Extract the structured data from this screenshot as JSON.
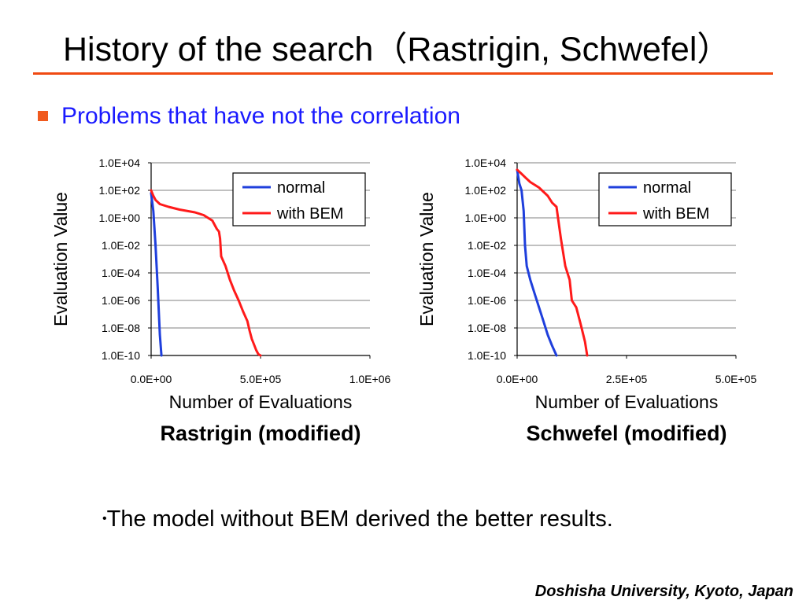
{
  "slide": {
    "title": "History of the search（Rastrigin, Schwefel）",
    "bullet": "Problems that have not the correlation",
    "conclusion_bullet": "•",
    "conclusion": "The model without BEM derived the better results.",
    "footer": "Doshisha University, Kyoto, Japan"
  },
  "colors": {
    "accent_rule": "#f04a12",
    "bullet_square": "#f05a1e",
    "bullet_text": "#1a1aff",
    "normal": "#1f3fdc",
    "with_bem": "#ff1a1a",
    "gridline": "#9a9a9a",
    "text": "#000000"
  },
  "chart_data": [
    {
      "type": "line",
      "caption": "Rastrigin (modified)",
      "xlabel": "Number of Evaluations",
      "ylabel": "Evaluation Value",
      "y_scale": "log",
      "xlim": [
        0,
        1000000
      ],
      "ylim_exp": [
        -10,
        4
      ],
      "x_ticks": [
        0,
        500000,
        1000000
      ],
      "x_tick_labels": [
        "0.0E+00",
        "5.0E+05",
        "1.0E+06"
      ],
      "y_tick_exps": [
        4,
        2,
        0,
        -2,
        -4,
        -6,
        -8,
        -10
      ],
      "y_tick_labels": [
        "1.0E+04",
        "1.0E+02",
        "1.0E+00",
        "1.0E-02",
        "1.0E-04",
        "1.0E-06",
        "1.0E-08",
        "1.0E-10"
      ],
      "grid": true,
      "legend_position": "top-right",
      "series": [
        {
          "name": "normal",
          "color": "#1f3fdc",
          "x": [
            0,
            10000,
            20000,
            30000,
            40000,
            47000
          ],
          "log10_y": [
            1.8,
            0.5,
            -2.0,
            -5.0,
            -8.5,
            -10
          ]
        },
        {
          "name": "with BEM",
          "color": "#ff1a1a",
          "x": [
            0,
            10000,
            20000,
            40000,
            80000,
            130000,
            200000,
            240000,
            280000,
            300000,
            310000,
            315000,
            320000,
            340000,
            360000,
            380000,
            400000,
            420000,
            440000,
            450000,
            460000,
            470000,
            480000,
            490000,
            500000
          ],
          "log10_y": [
            2.0,
            1.6,
            1.3,
            1.0,
            0.8,
            0.6,
            0.4,
            0.2,
            -0.2,
            -0.8,
            -1.0,
            -1.5,
            -2.8,
            -3.5,
            -4.5,
            -5.3,
            -6.0,
            -6.8,
            -7.5,
            -8.2,
            -8.8,
            -9.2,
            -9.6,
            -9.9,
            -10
          ]
        }
      ]
    },
    {
      "type": "line",
      "caption": "Schwefel (modified)",
      "xlabel": "Number of Evaluations",
      "ylabel": "Evaluation Value",
      "y_scale": "log",
      "xlim": [
        0,
        500000
      ],
      "ylim_exp": [
        -10,
        4
      ],
      "x_ticks": [
        0,
        250000,
        500000
      ],
      "x_tick_labels": [
        "0.0E+00",
        "2.5E+05",
        "5.0E+05"
      ],
      "y_tick_exps": [
        4,
        2,
        0,
        -2,
        -4,
        -6,
        -8,
        -10
      ],
      "y_tick_labels": [
        "1.0E+04",
        "1.0E+02",
        "1.0E+00",
        "1.0E-02",
        "1.0E-04",
        "1.0E-06",
        "1.0E-08",
        "1.0E-10"
      ],
      "grid": true,
      "legend_position": "top-right",
      "series": [
        {
          "name": "normal",
          "color": "#1f3fdc",
          "x": [
            0,
            5000,
            10000,
            15000,
            18000,
            22000,
            30000,
            40000,
            50000,
            60000,
            70000,
            80000,
            90000
          ],
          "log10_y": [
            3.5,
            2.5,
            2.0,
            0.5,
            -2.0,
            -3.5,
            -4.5,
            -5.5,
            -6.5,
            -7.5,
            -8.5,
            -9.3,
            -10
          ]
        },
        {
          "name": "with BEM",
          "color": "#ff1a1a",
          "x": [
            0,
            10000,
            20000,
            30000,
            50000,
            70000,
            80000,
            90000,
            100000,
            110000,
            120000,
            125000,
            135000,
            145000,
            155000,
            160000
          ],
          "log10_y": [
            3.5,
            3.2,
            2.9,
            2.6,
            2.2,
            1.6,
            1.1,
            0.8,
            -1.5,
            -3.5,
            -4.5,
            -6.0,
            -6.5,
            -7.7,
            -9.0,
            -10
          ]
        }
      ]
    }
  ]
}
